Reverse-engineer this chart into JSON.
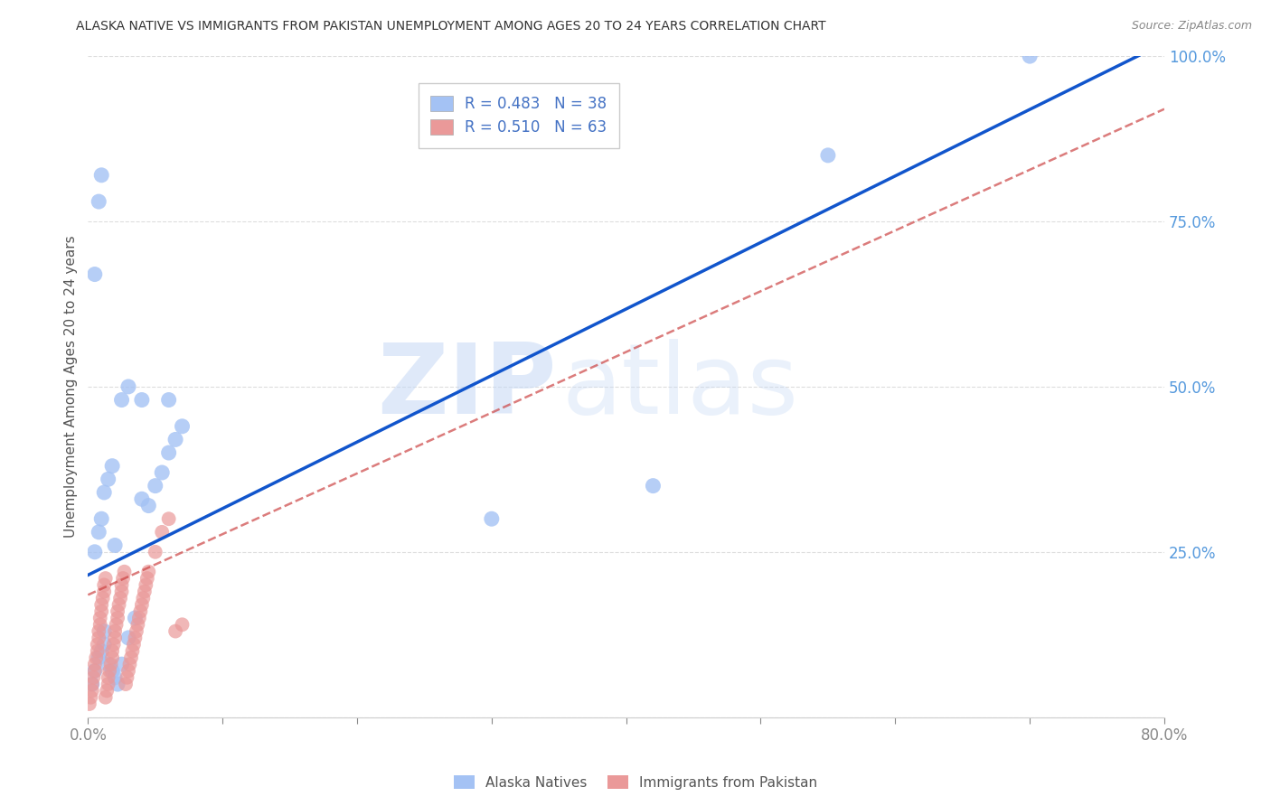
{
  "title": "ALASKA NATIVE VS IMMIGRANTS FROM PAKISTAN UNEMPLOYMENT AMONG AGES 20 TO 24 YEARS CORRELATION CHART",
  "source": "Source: ZipAtlas.com",
  "ylabel": "Unemployment Among Ages 20 to 24 years",
  "watermark_zip": "ZIP",
  "watermark_atlas": "atlas",
  "legend_blue_r": "R = 0.483",
  "legend_blue_n": "N = 38",
  "legend_pink_r": "R = 0.510",
  "legend_pink_n": "N = 63",
  "xlim": [
    0.0,
    0.8
  ],
  "ylim": [
    0.0,
    1.0
  ],
  "blue_color": "#a4c2f4",
  "pink_color": "#ea9999",
  "blue_line_color": "#1155cc",
  "pink_line_color": "#cc4444",
  "background_color": "#ffffff",
  "grid_color": "#dddddd",
  "blue_trend_x0": 0.0,
  "blue_trend_y0": 0.215,
  "blue_trend_x1": 0.8,
  "blue_trend_y1": 1.02,
  "pink_trend_x0": 0.0,
  "pink_trend_y0": 0.185,
  "pink_trend_x1": 0.8,
  "pink_trend_y1": 0.92,
  "alaska_x": [
    0.003,
    0.005,
    0.008,
    0.01,
    0.012,
    0.015,
    0.018,
    0.02,
    0.022,
    0.025,
    0.03,
    0.035,
    0.04,
    0.045,
    0.05,
    0.055,
    0.06,
    0.065,
    0.07,
    0.005,
    0.008,
    0.01,
    0.012,
    0.015,
    0.018,
    0.02,
    0.025,
    0.03,
    0.04,
    0.06,
    0.3,
    0.42,
    0.55,
    0.7,
    0.005,
    0.008,
    0.01,
    0.012
  ],
  "alaska_y": [
    0.05,
    0.07,
    0.09,
    0.1,
    0.11,
    0.08,
    0.07,
    0.06,
    0.05,
    0.08,
    0.12,
    0.15,
    0.33,
    0.32,
    0.35,
    0.37,
    0.4,
    0.42,
    0.44,
    0.25,
    0.28,
    0.3,
    0.34,
    0.36,
    0.38,
    0.26,
    0.48,
    0.5,
    0.48,
    0.48,
    0.3,
    0.35,
    0.85,
    1.0,
    0.67,
    0.78,
    0.82,
    0.13
  ],
  "pakistan_x": [
    0.001,
    0.002,
    0.003,
    0.003,
    0.004,
    0.005,
    0.005,
    0.006,
    0.007,
    0.007,
    0.008,
    0.008,
    0.009,
    0.009,
    0.01,
    0.01,
    0.011,
    0.012,
    0.012,
    0.013,
    0.013,
    0.014,
    0.015,
    0.015,
    0.016,
    0.017,
    0.018,
    0.018,
    0.019,
    0.02,
    0.02,
    0.021,
    0.022,
    0.022,
    0.023,
    0.024,
    0.025,
    0.025,
    0.026,
    0.027,
    0.028,
    0.029,
    0.03,
    0.031,
    0.032,
    0.033,
    0.034,
    0.035,
    0.036,
    0.037,
    0.038,
    0.039,
    0.04,
    0.041,
    0.042,
    0.043,
    0.044,
    0.045,
    0.05,
    0.055,
    0.06,
    0.065,
    0.07
  ],
  "pakistan_y": [
    0.02,
    0.03,
    0.04,
    0.05,
    0.06,
    0.07,
    0.08,
    0.09,
    0.1,
    0.11,
    0.12,
    0.13,
    0.14,
    0.15,
    0.16,
    0.17,
    0.18,
    0.19,
    0.2,
    0.21,
    0.03,
    0.04,
    0.05,
    0.06,
    0.07,
    0.08,
    0.09,
    0.1,
    0.11,
    0.12,
    0.13,
    0.14,
    0.15,
    0.16,
    0.17,
    0.18,
    0.19,
    0.2,
    0.21,
    0.22,
    0.05,
    0.06,
    0.07,
    0.08,
    0.09,
    0.1,
    0.11,
    0.12,
    0.13,
    0.14,
    0.15,
    0.16,
    0.17,
    0.18,
    0.19,
    0.2,
    0.21,
    0.22,
    0.25,
    0.28,
    0.3,
    0.13,
    0.14
  ]
}
